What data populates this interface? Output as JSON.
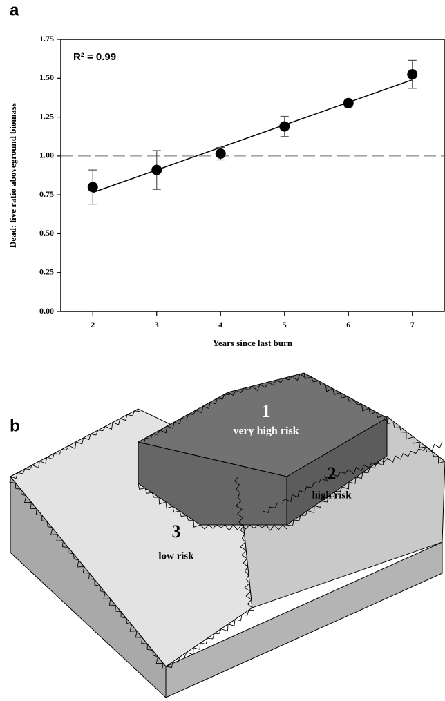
{
  "panel_a_label": "a",
  "chart_data": {
    "type": "scatter",
    "x": [
      2,
      3,
      4,
      5,
      6,
      7
    ],
    "values": [
      0.8,
      0.91,
      1.015,
      1.19,
      1.34,
      1.525
    ],
    "errors": [
      0.11,
      0.125,
      0.04,
      0.065,
      0.025,
      0.09
    ],
    "color": "#000000",
    "fit": {
      "x": [
        2,
        7
      ],
      "values": [
        0.765,
        1.49
      ]
    },
    "reference_line": 1.0,
    "annotation": "R² = 0.99",
    "xlabel": "Years since last burn",
    "ylabel": "Dead: live ratio aboveground biomass",
    "xlim": [
      1.5,
      7.5
    ],
    "xticks": [
      2,
      3,
      4,
      5,
      6,
      7
    ],
    "ylim": [
      0,
      1.75
    ],
    "yticks": [
      {
        "value": 0,
        "label": "0.00"
      },
      {
        "value": 0.25,
        "label": "0.25"
      },
      {
        "value": 0.5,
        "label": "0.50"
      },
      {
        "value": 0.75,
        "label": "0.75"
      },
      {
        "value": 1.0,
        "label": "1.00"
      },
      {
        "value": 1.25,
        "label": "1.25"
      },
      {
        "value": 1.5,
        "label": "1.50"
      },
      {
        "value": 1.75,
        "label": "1.75"
      }
    ]
  },
  "panel_b": {
    "label": "b",
    "zones": [
      {
        "number": "1",
        "risk": "very high risk"
      },
      {
        "number": "2",
        "risk": "high risk"
      },
      {
        "number": "3",
        "risk": "low risk"
      }
    ]
  }
}
